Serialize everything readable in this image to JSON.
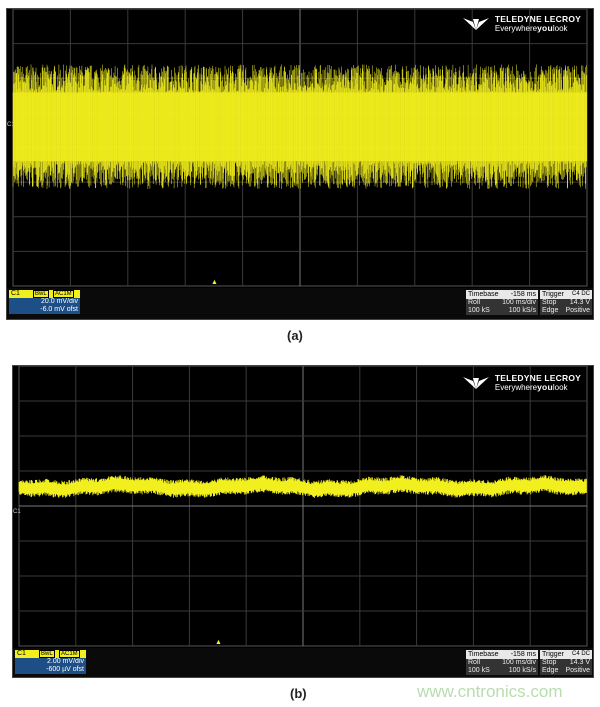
{
  "logo": {
    "brand": "TELEDYNE LECROY",
    "tagline_pre": "Everywhere",
    "tagline_bold": "you",
    "tagline_post": "look"
  },
  "screens": [
    {
      "caption": "(a)",
      "channel": {
        "label": "C1",
        "tags": [
          "BwL",
          "AC1M"
        ],
        "scale": "20.0 mV/div",
        "offset": "-6.0 mV ofst"
      },
      "timebase": {
        "label": "Timebase",
        "value": "-158 ms",
        "mode": "Roll",
        "div": "100 ms/div",
        "samples": "100 kS",
        "rate": "100 kS/s"
      },
      "trigger": {
        "label": "Trigger",
        "src": "C4",
        "coupling": "DC",
        "state": "Stop",
        "level": "14.3 V",
        "type": "Edge",
        "slope": "Positive"
      },
      "trace": {
        "center_div": 0.6,
        "amplitude_div": 1.8,
        "color": "#f2ef1e"
      }
    },
    {
      "caption": "(b)",
      "channel": {
        "label": "C1",
        "tags": [
          "BwL",
          "AC1M"
        ],
        "scale": "2.00 mV/div",
        "offset": "-600 µV ofst"
      },
      "timebase": {
        "label": "Timebase",
        "value": "-158 ms",
        "mode": "Roll",
        "div": "100 ms/div",
        "samples": "100 kS",
        "rate": "100 kS/s"
      },
      "trigger": {
        "label": "Trigger",
        "src": "C4",
        "coupling": "DC",
        "state": "Stop",
        "level": "14.3 V",
        "type": "Edge",
        "slope": "Positive"
      },
      "trace": {
        "center_div": 0.55,
        "amplitude_div": 0.25,
        "color": "#f2ef1e"
      }
    }
  ],
  "marker": "C1",
  "watermark": "www.cntronics.com"
}
